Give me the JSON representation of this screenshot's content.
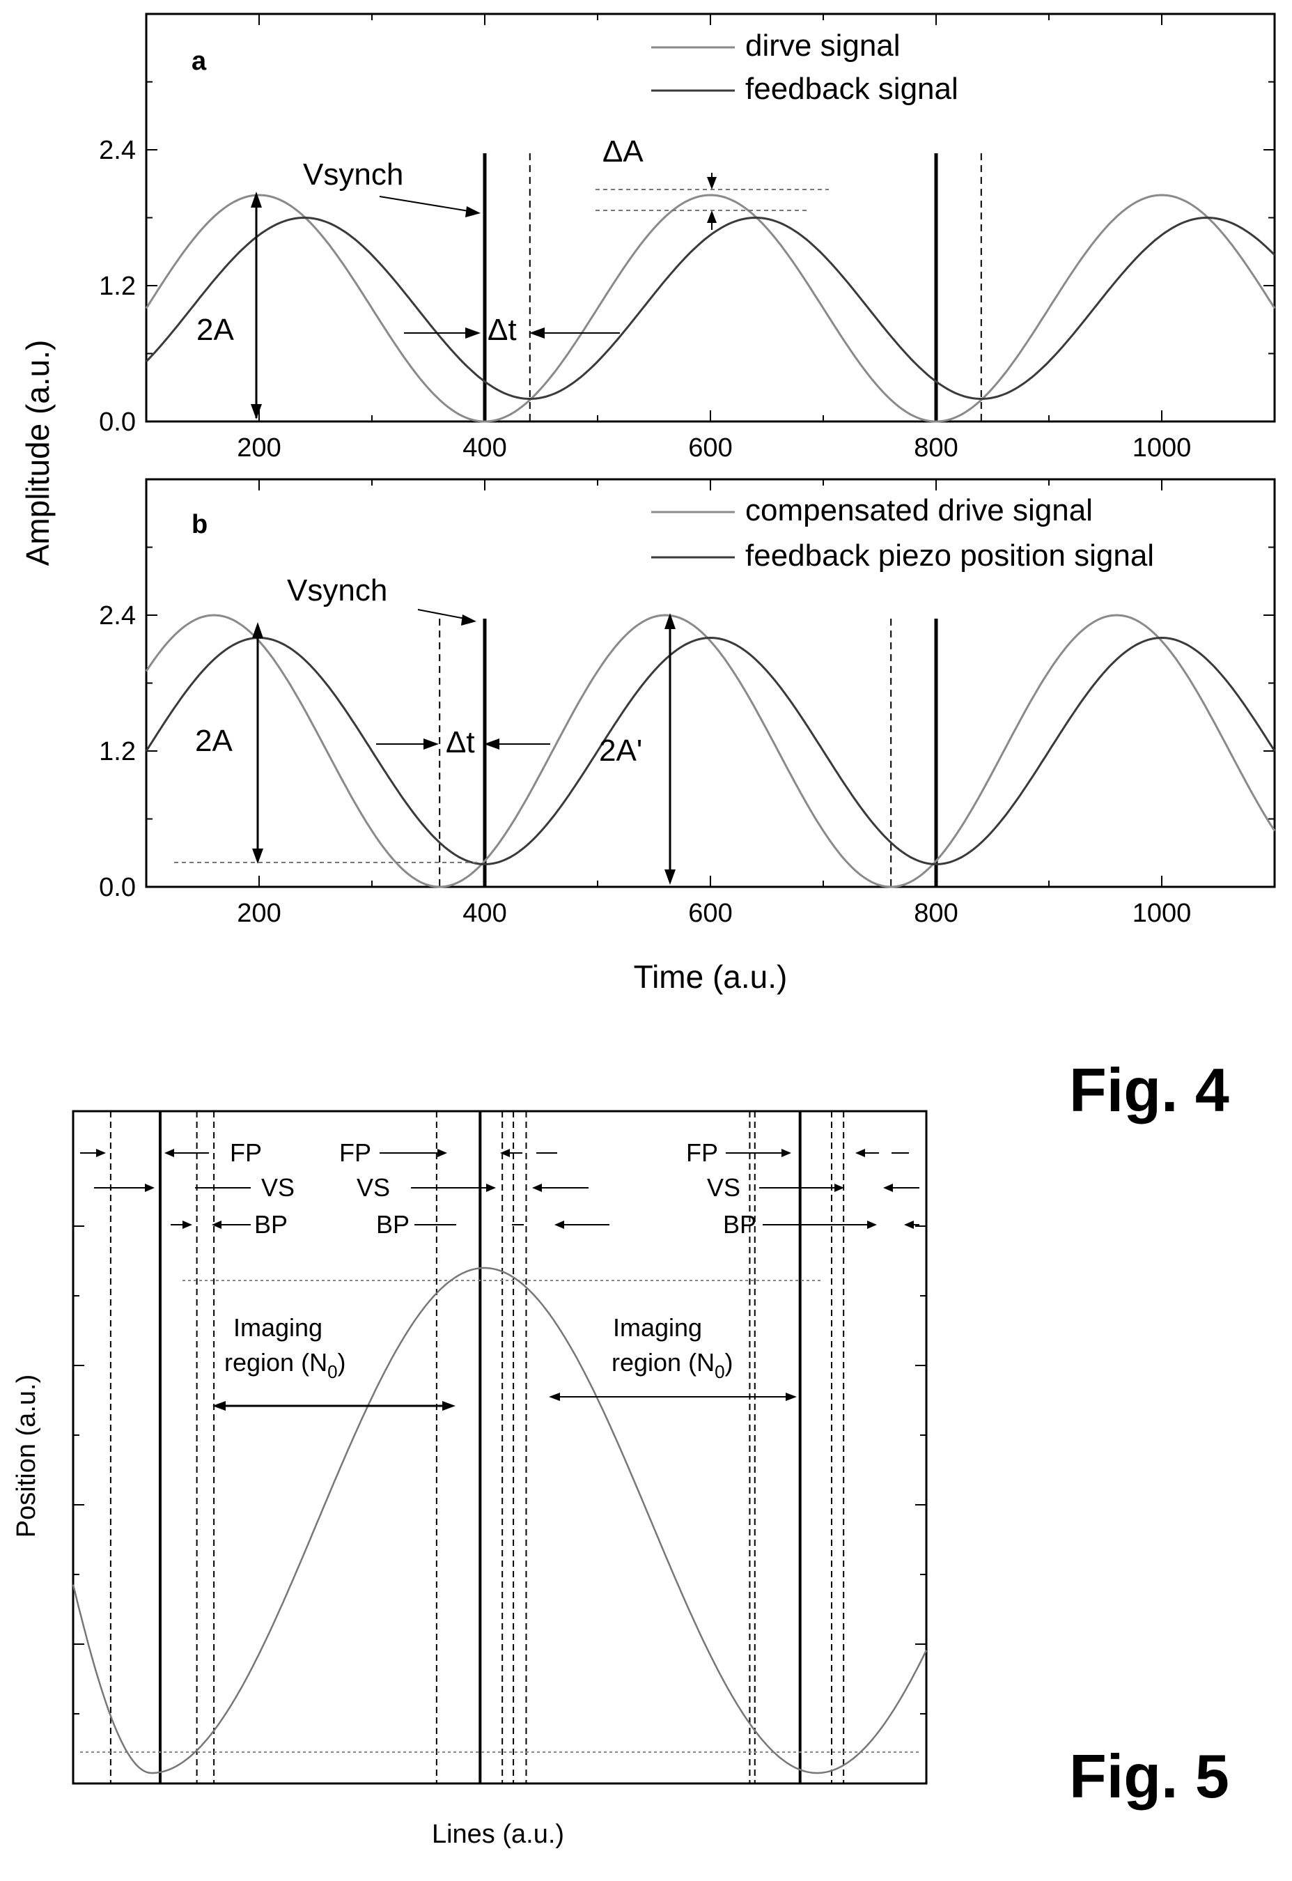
{
  "figure4": {
    "label": "Fig. 4",
    "ylabel": "Amplitude (a.u.)",
    "xlabel": "Time (a.u.)",
    "panels": [
      {
        "panel_label": "a",
        "legend": [
          "dirve signal",
          "feedback signal"
        ],
        "annotations": {
          "vsynch": "Vsynch",
          "two_a": "2A",
          "delta_t": "Δt",
          "delta_a": "ΔA"
        }
      },
      {
        "panel_label": "b",
        "legend": [
          "compensated drive signal",
          "feedback piezo position signal"
        ],
        "annotations": {
          "vsynch": "Vsynch",
          "two_a": "2A",
          "delta_t": "Δt",
          "two_a_prime": "2A'"
        }
      }
    ]
  },
  "figure5": {
    "label": "Fig. 5",
    "ylabel": "Position (a.u.)",
    "xlabel": "Lines (a.u.)",
    "annotations": {
      "fp": "FP",
      "vs": "VS",
      "bp": "BP",
      "imaging_line1": "Imaging",
      "imaging_line2": "region (N",
      "imaging_sub": "0",
      "imaging_close": ")"
    }
  },
  "chart_data": [
    {
      "type": "line",
      "title": "",
      "xlabel": "",
      "ylabel": "Amplitude (a.u.)",
      "xlim": [
        100,
        1100
      ],
      "ylim": [
        0,
        3.6
      ],
      "x_ticks": [
        200,
        400,
        600,
        800,
        1000
      ],
      "y_ticks": [
        0.0,
        1.2,
        2.4
      ],
      "grid": false,
      "legend_position": "top-right",
      "series": [
        {
          "name": "dirve signal",
          "color": "#888888",
          "function": "sine",
          "period": 400,
          "min": 0.0,
          "max": 2.0,
          "peak_x": [
            200,
            600,
            1000
          ]
        },
        {
          "name": "feedback signal",
          "color": "#333333",
          "function": "sine",
          "period": 400,
          "min": 0.2,
          "max": 1.8,
          "peak_x": [
            240,
            640,
            1040
          ]
        }
      ],
      "vertical_markers": [
        {
          "x": 400,
          "style": "solid"
        },
        {
          "x": 440,
          "style": "dashed"
        },
        {
          "x": 800,
          "style": "solid"
        },
        {
          "x": 840,
          "style": "dashed"
        }
      ]
    },
    {
      "type": "line",
      "title": "",
      "xlabel": "Time (a.u.)",
      "ylabel": "Amplitude (a.u.)",
      "xlim": [
        100,
        1100
      ],
      "ylim": [
        0,
        3.6
      ],
      "x_ticks": [
        200,
        400,
        600,
        800,
        1000
      ],
      "y_ticks": [
        0.0,
        1.2,
        2.4
      ],
      "grid": false,
      "legend_position": "top-right",
      "series": [
        {
          "name": "compensated drive signal",
          "color": "#888888",
          "function": "sine",
          "period": 400,
          "min": 0.0,
          "max": 2.4,
          "peak_x": [
            160,
            560,
            960
          ]
        },
        {
          "name": "feedback piezo position signal",
          "color": "#333333",
          "function": "sine",
          "period": 400,
          "min": 0.2,
          "max": 2.2,
          "peak_x": [
            200,
            600,
            1000
          ]
        }
      ],
      "vertical_markers": [
        {
          "x": 360,
          "style": "dashed"
        },
        {
          "x": 400,
          "style": "solid"
        },
        {
          "x": 760,
          "style": "dashed"
        },
        {
          "x": 800,
          "style": "solid"
        }
      ]
    },
    {
      "type": "line",
      "title": "",
      "xlabel": "Lines (a.u.)",
      "ylabel": "Position (a.u.)",
      "xlim": [
        0,
        1
      ],
      "ylim": [
        0,
        1
      ],
      "grid": false,
      "series": [
        {
          "color": "#777777",
          "function": "cosine",
          "min": 0.0,
          "max": 1.0,
          "min_x": [
            0.092,
            0.872
          ],
          "peak_x": [
            0.482
          ]
        }
      ],
      "vertical_markers": [
        {
          "x": 0.044,
          "style": "dashed"
        },
        {
          "x": 0.102,
          "style": "solid"
        },
        {
          "x": 0.145,
          "style": "dashed"
        },
        {
          "x": 0.165,
          "style": "dashed"
        },
        {
          "x": 0.426,
          "style": "dashed"
        },
        {
          "x": 0.477,
          "style": "solid"
        },
        {
          "x": 0.503,
          "style": "dashed"
        },
        {
          "x": 0.516,
          "style": "dashed"
        },
        {
          "x": 0.531,
          "style": "dashed"
        },
        {
          "x": 0.793,
          "style": "dashed"
        },
        {
          "x": 0.799,
          "style": "dashed"
        },
        {
          "x": 0.852,
          "style": "solid"
        },
        {
          "x": 0.889,
          "style": "dashed"
        },
        {
          "x": 0.903,
          "style": "dashed"
        }
      ]
    }
  ]
}
